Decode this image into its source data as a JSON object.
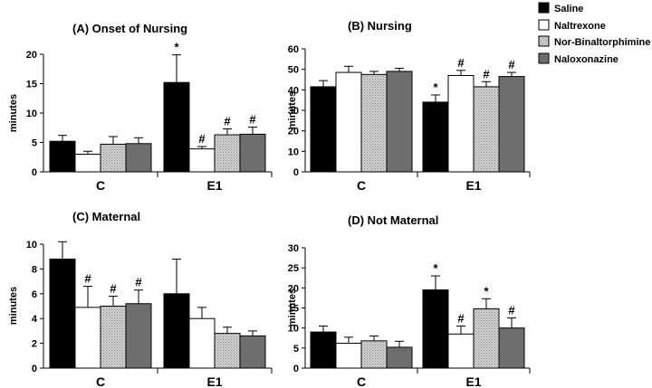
{
  "legend": {
    "entries": [
      "Saline",
      "Naltrexone",
      "Nor-Binaltorphimine",
      "Naloxonazine"
    ]
  },
  "series_colors": [
    "#000000",
    "#ffffff",
    "#c8c8c8",
    "#6e6e6e"
  ],
  "chart_data": [
    {
      "type": "bar",
      "title": "(A) Onset of Nursing",
      "ylabel": "minutes",
      "xlabel": "",
      "ylim": [
        0,
        20
      ],
      "yticks": [
        0,
        5,
        10,
        15,
        20
      ],
      "categories": [
        "C",
        "E1"
      ],
      "series": [
        {
          "name": "Saline",
          "values": [
            5.2,
            15.2
          ],
          "errors": [
            1.0,
            4.7
          ],
          "marks": [
            "",
            "*"
          ]
        },
        {
          "name": "Naltrexone",
          "values": [
            3.0,
            3.9
          ],
          "errors": [
            0.5,
            0.4
          ],
          "marks": [
            "",
            "#"
          ]
        },
        {
          "name": "Nor-Binaltorphimine",
          "values": [
            4.7,
            6.3
          ],
          "errors": [
            1.3,
            1.0
          ],
          "marks": [
            "",
            "#"
          ]
        },
        {
          "name": "Naloxonazine",
          "values": [
            4.8,
            6.4
          ],
          "errors": [
            1.0,
            1.2
          ],
          "marks": [
            "",
            "#"
          ]
        }
      ]
    },
    {
      "type": "bar",
      "title": "(B) Nursing",
      "ylabel": "minutes",
      "xlabel": "",
      "ylim": [
        0,
        60
      ],
      "yticks": [
        0,
        10,
        20,
        30,
        40,
        50,
        60
      ],
      "categories": [
        "C",
        "E1"
      ],
      "series": [
        {
          "name": "Saline",
          "values": [
            41.5,
            34.0
          ],
          "errors": [
            3.0,
            3.5
          ],
          "marks": [
            "",
            "*"
          ]
        },
        {
          "name": "Naltrexone",
          "values": [
            48.5,
            47.0
          ],
          "errors": [
            3.0,
            2.5
          ],
          "marks": [
            "",
            "#"
          ]
        },
        {
          "name": "Nor-Binaltorphimine",
          "values": [
            47.5,
            41.5
          ],
          "errors": [
            1.5,
            2.5
          ],
          "marks": [
            "",
            "#"
          ]
        },
        {
          "name": "Naloxonazine",
          "values": [
            49.0,
            46.5
          ],
          "errors": [
            1.5,
            2.0
          ],
          "marks": [
            "",
            "#"
          ]
        }
      ]
    },
    {
      "type": "bar",
      "title": "(C) Maternal",
      "ylabel": "minutes",
      "xlabel": "",
      "ylim": [
        0,
        10
      ],
      "yticks": [
        0,
        2,
        4,
        6,
        8,
        10
      ],
      "categories": [
        "C",
        "E1"
      ],
      "series": [
        {
          "name": "Saline",
          "values": [
            8.8,
            6.0
          ],
          "errors": [
            1.4,
            2.8
          ],
          "marks": [
            "",
            ""
          ]
        },
        {
          "name": "Naltrexone",
          "values": [
            4.9,
            4.0
          ],
          "errors": [
            1.7,
            0.9
          ],
          "marks": [
            "#",
            ""
          ]
        },
        {
          "name": "Nor-Binaltorphimine",
          "values": [
            5.0,
            2.8
          ],
          "errors": [
            0.8,
            0.5
          ],
          "marks": [
            "#",
            ""
          ]
        },
        {
          "name": "Naloxonazine",
          "values": [
            5.2,
            2.6
          ],
          "errors": [
            1.1,
            0.4
          ],
          "marks": [
            "#",
            ""
          ]
        }
      ]
    },
    {
      "type": "bar",
      "title": "(D) Not Maternal",
      "ylabel": "minutes",
      "xlabel": "",
      "ylim": [
        0,
        30
      ],
      "yticks": [
        0,
        5,
        10,
        15,
        20,
        25,
        30
      ],
      "categories": [
        "C",
        "E1"
      ],
      "series": [
        {
          "name": "Saline",
          "values": [
            9.0,
            19.5
          ],
          "errors": [
            1.5,
            3.5
          ],
          "marks": [
            "",
            "*"
          ]
        },
        {
          "name": "Naltrexone",
          "values": [
            6.2,
            8.5
          ],
          "errors": [
            1.5,
            2.0
          ],
          "marks": [
            "",
            "#"
          ]
        },
        {
          "name": "Nor-Binaltorphimine",
          "values": [
            6.8,
            14.8
          ],
          "errors": [
            1.2,
            2.5
          ],
          "marks": [
            "",
            "*"
          ]
        },
        {
          "name": "Naloxonazine",
          "values": [
            5.2,
            10.0
          ],
          "errors": [
            1.5,
            2.5
          ],
          "marks": [
            "",
            "#"
          ]
        }
      ]
    }
  ]
}
